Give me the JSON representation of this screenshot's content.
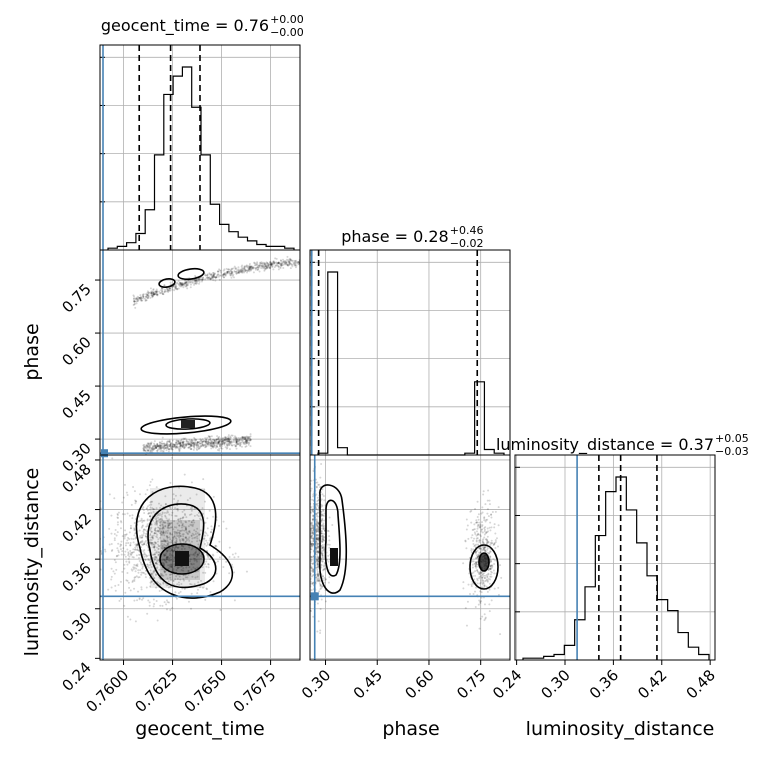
{
  "chart_data": {
    "type": "corner",
    "parameters": [
      "geocent_time",
      "phase",
      "luminosity_distance"
    ],
    "truth_color": "#4682b4",
    "colors": {
      "truth": "#4682b4",
      "hist": "#000000",
      "grid": "#b0b0b0"
    },
    "grid": true,
    "ranges": {
      "geocent_time": [
        0.7588,
        0.769
      ],
      "phase": [
        0.255,
        0.835
      ],
      "luminosity_distance": [
        0.238,
        0.486
      ]
    },
    "truths": {
      "geocent_time": 0.7588,
      "phase": 0.26,
      "luminosity_distance": 0.315
    },
    "titles": {
      "geocent_time": {
        "text": "geocent_time = 0.76",
        "plus": "+0.00",
        "minus": "−0.00"
      },
      "phase": {
        "text": "phase = 0.28",
        "plus": "+0.46",
        "minus": "−0.02"
      },
      "luminosity_distance": {
        "text": "luminosity_distance = 0.37",
        "plus": "+0.05",
        "minus": "−0.03"
      }
    },
    "quantiles": {
      "geocent_time": [
        0.7608,
        0.7624,
        0.7639
      ],
      "phase": [
        0.26,
        0.28,
        0.74
      ],
      "luminosity_distance": [
        0.342,
        0.369,
        0.414
      ]
    },
    "ticks": {
      "geocent_time": {
        "values": [
          0.76,
          0.7625,
          0.765,
          0.7675
        ],
        "labels": [
          "0.7600",
          "0.7625",
          "0.7650",
          "0.7675"
        ]
      },
      "phase": {
        "values": [
          0.3,
          0.45,
          0.6,
          0.75
        ],
        "labels": [
          "0.30",
          "0.45",
          "0.60",
          "0.75"
        ]
      },
      "luminosity_distance": {
        "values": [
          0.24,
          0.3,
          0.36,
          0.42,
          0.48
        ],
        "labels": [
          "0.24",
          "0.30",
          "0.36",
          "0.42",
          "0.48"
        ]
      }
    },
    "hist": {
      "geocent_time": [
        1,
        2,
        4,
        9,
        22,
        52,
        85,
        95,
        100,
        78,
        52,
        25,
        14,
        10,
        7,
        5,
        3,
        2,
        2,
        1
      ],
      "phase": [
        1,
        100,
        4,
        0,
        0,
        0,
        0,
        0,
        0,
        0,
        0,
        0,
        0,
        0,
        0,
        1,
        40,
        3,
        1
      ],
      "luminosity_distance": [
        1,
        1,
        2,
        3,
        8,
        22,
        40,
        68,
        92,
        100,
        82,
        64,
        46,
        33,
        27,
        15,
        7,
        3
      ]
    },
    "xlabels": [
      "geocent_time",
      "phase",
      "luminosity_distance"
    ],
    "ylabels": [
      "phase",
      "luminosity_distance"
    ]
  }
}
